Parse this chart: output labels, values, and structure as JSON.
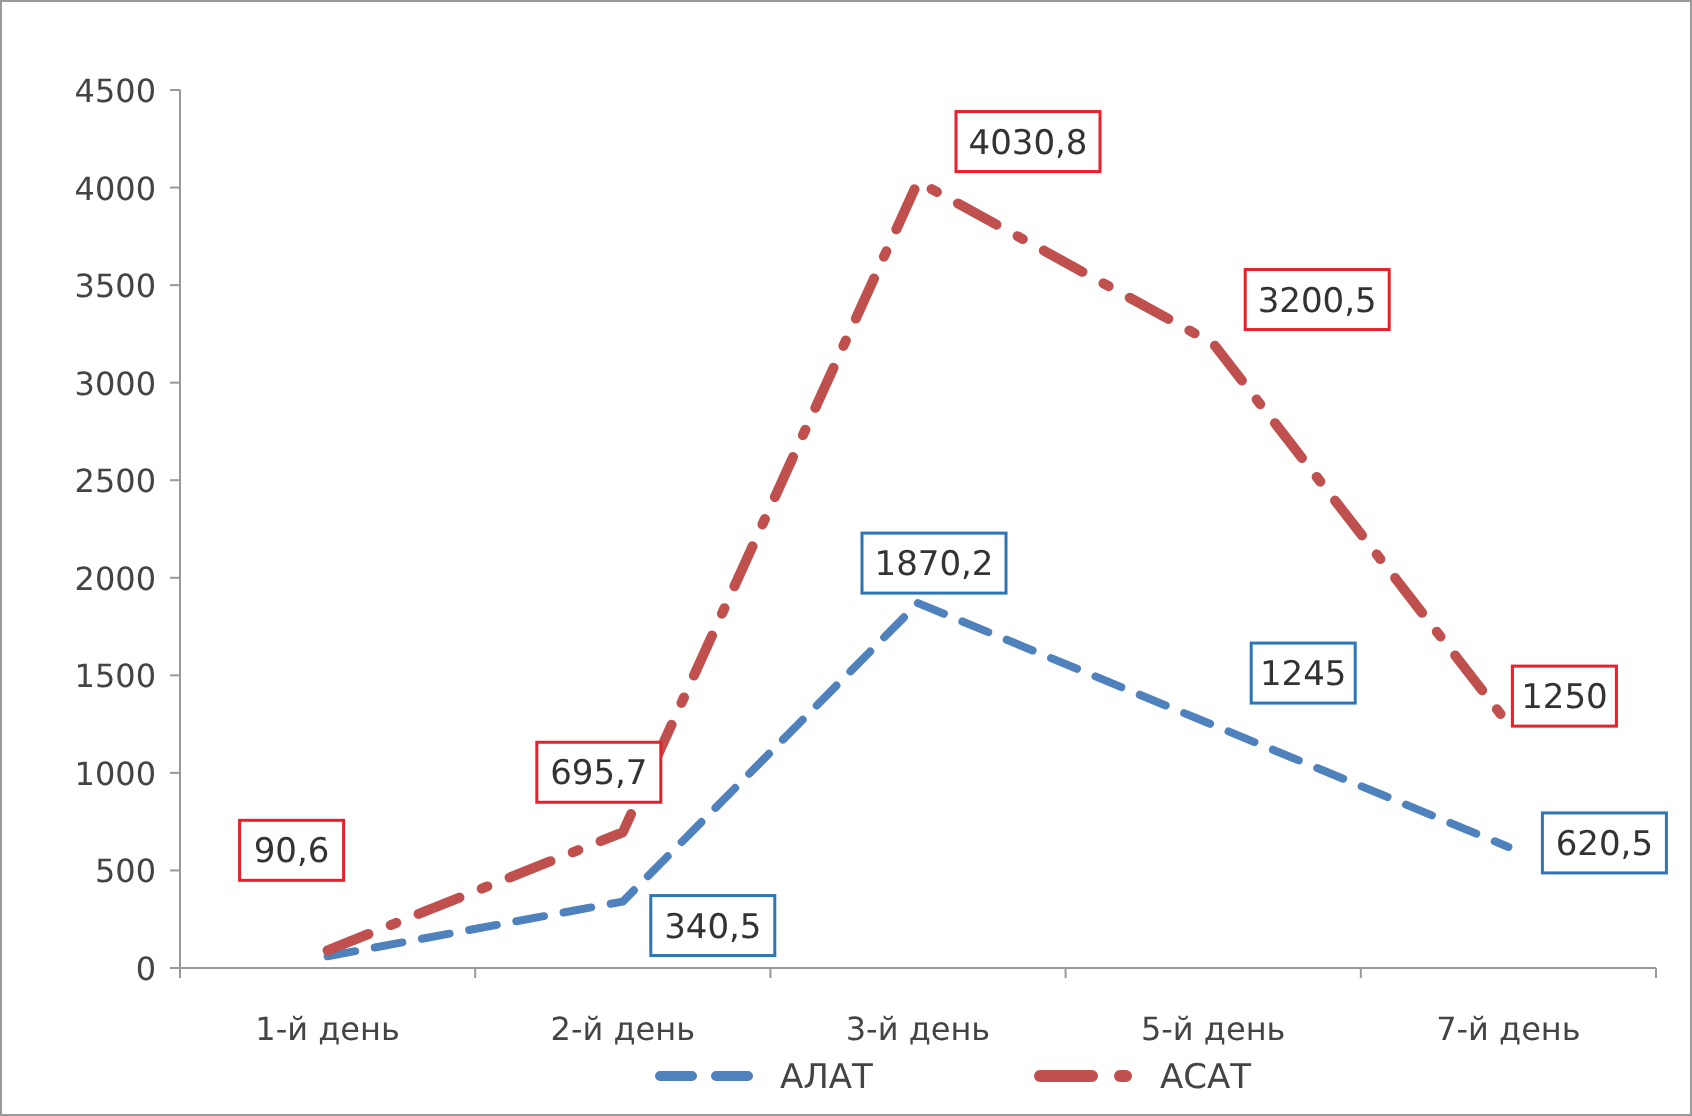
{
  "chart_data": {
    "type": "line",
    "categories": [
      "1-й день",
      "2-й день",
      "3-й день",
      "5-й день",
      "7-й день"
    ],
    "series": [
      {
        "name": "АЛАТ",
        "color": "#4f81bd",
        "line_style": "dashed",
        "values": [
          60,
          340.5,
          1870.2,
          1245,
          620.5
        ],
        "value_labels": [
          null,
          "340,5",
          "1870,2",
          "1245",
          "620,5"
        ]
      },
      {
        "name": "АСАТ",
        "color": "#c0504d",
        "line_style": "dashdot",
        "values": [
          90.6,
          695.7,
          4030.8,
          3200.5,
          1250
        ],
        "value_labels": [
          "90,6",
          "695,7",
          "4030,8",
          "3200,5",
          "1250"
        ]
      }
    ],
    "ylim": [
      0,
      4500
    ],
    "yticks": [
      0,
      500,
      1000,
      1500,
      2000,
      2500,
      3000,
      3500,
      4000,
      4500
    ],
    "grid": false,
    "legend": "bottom",
    "marker": "none"
  }
}
